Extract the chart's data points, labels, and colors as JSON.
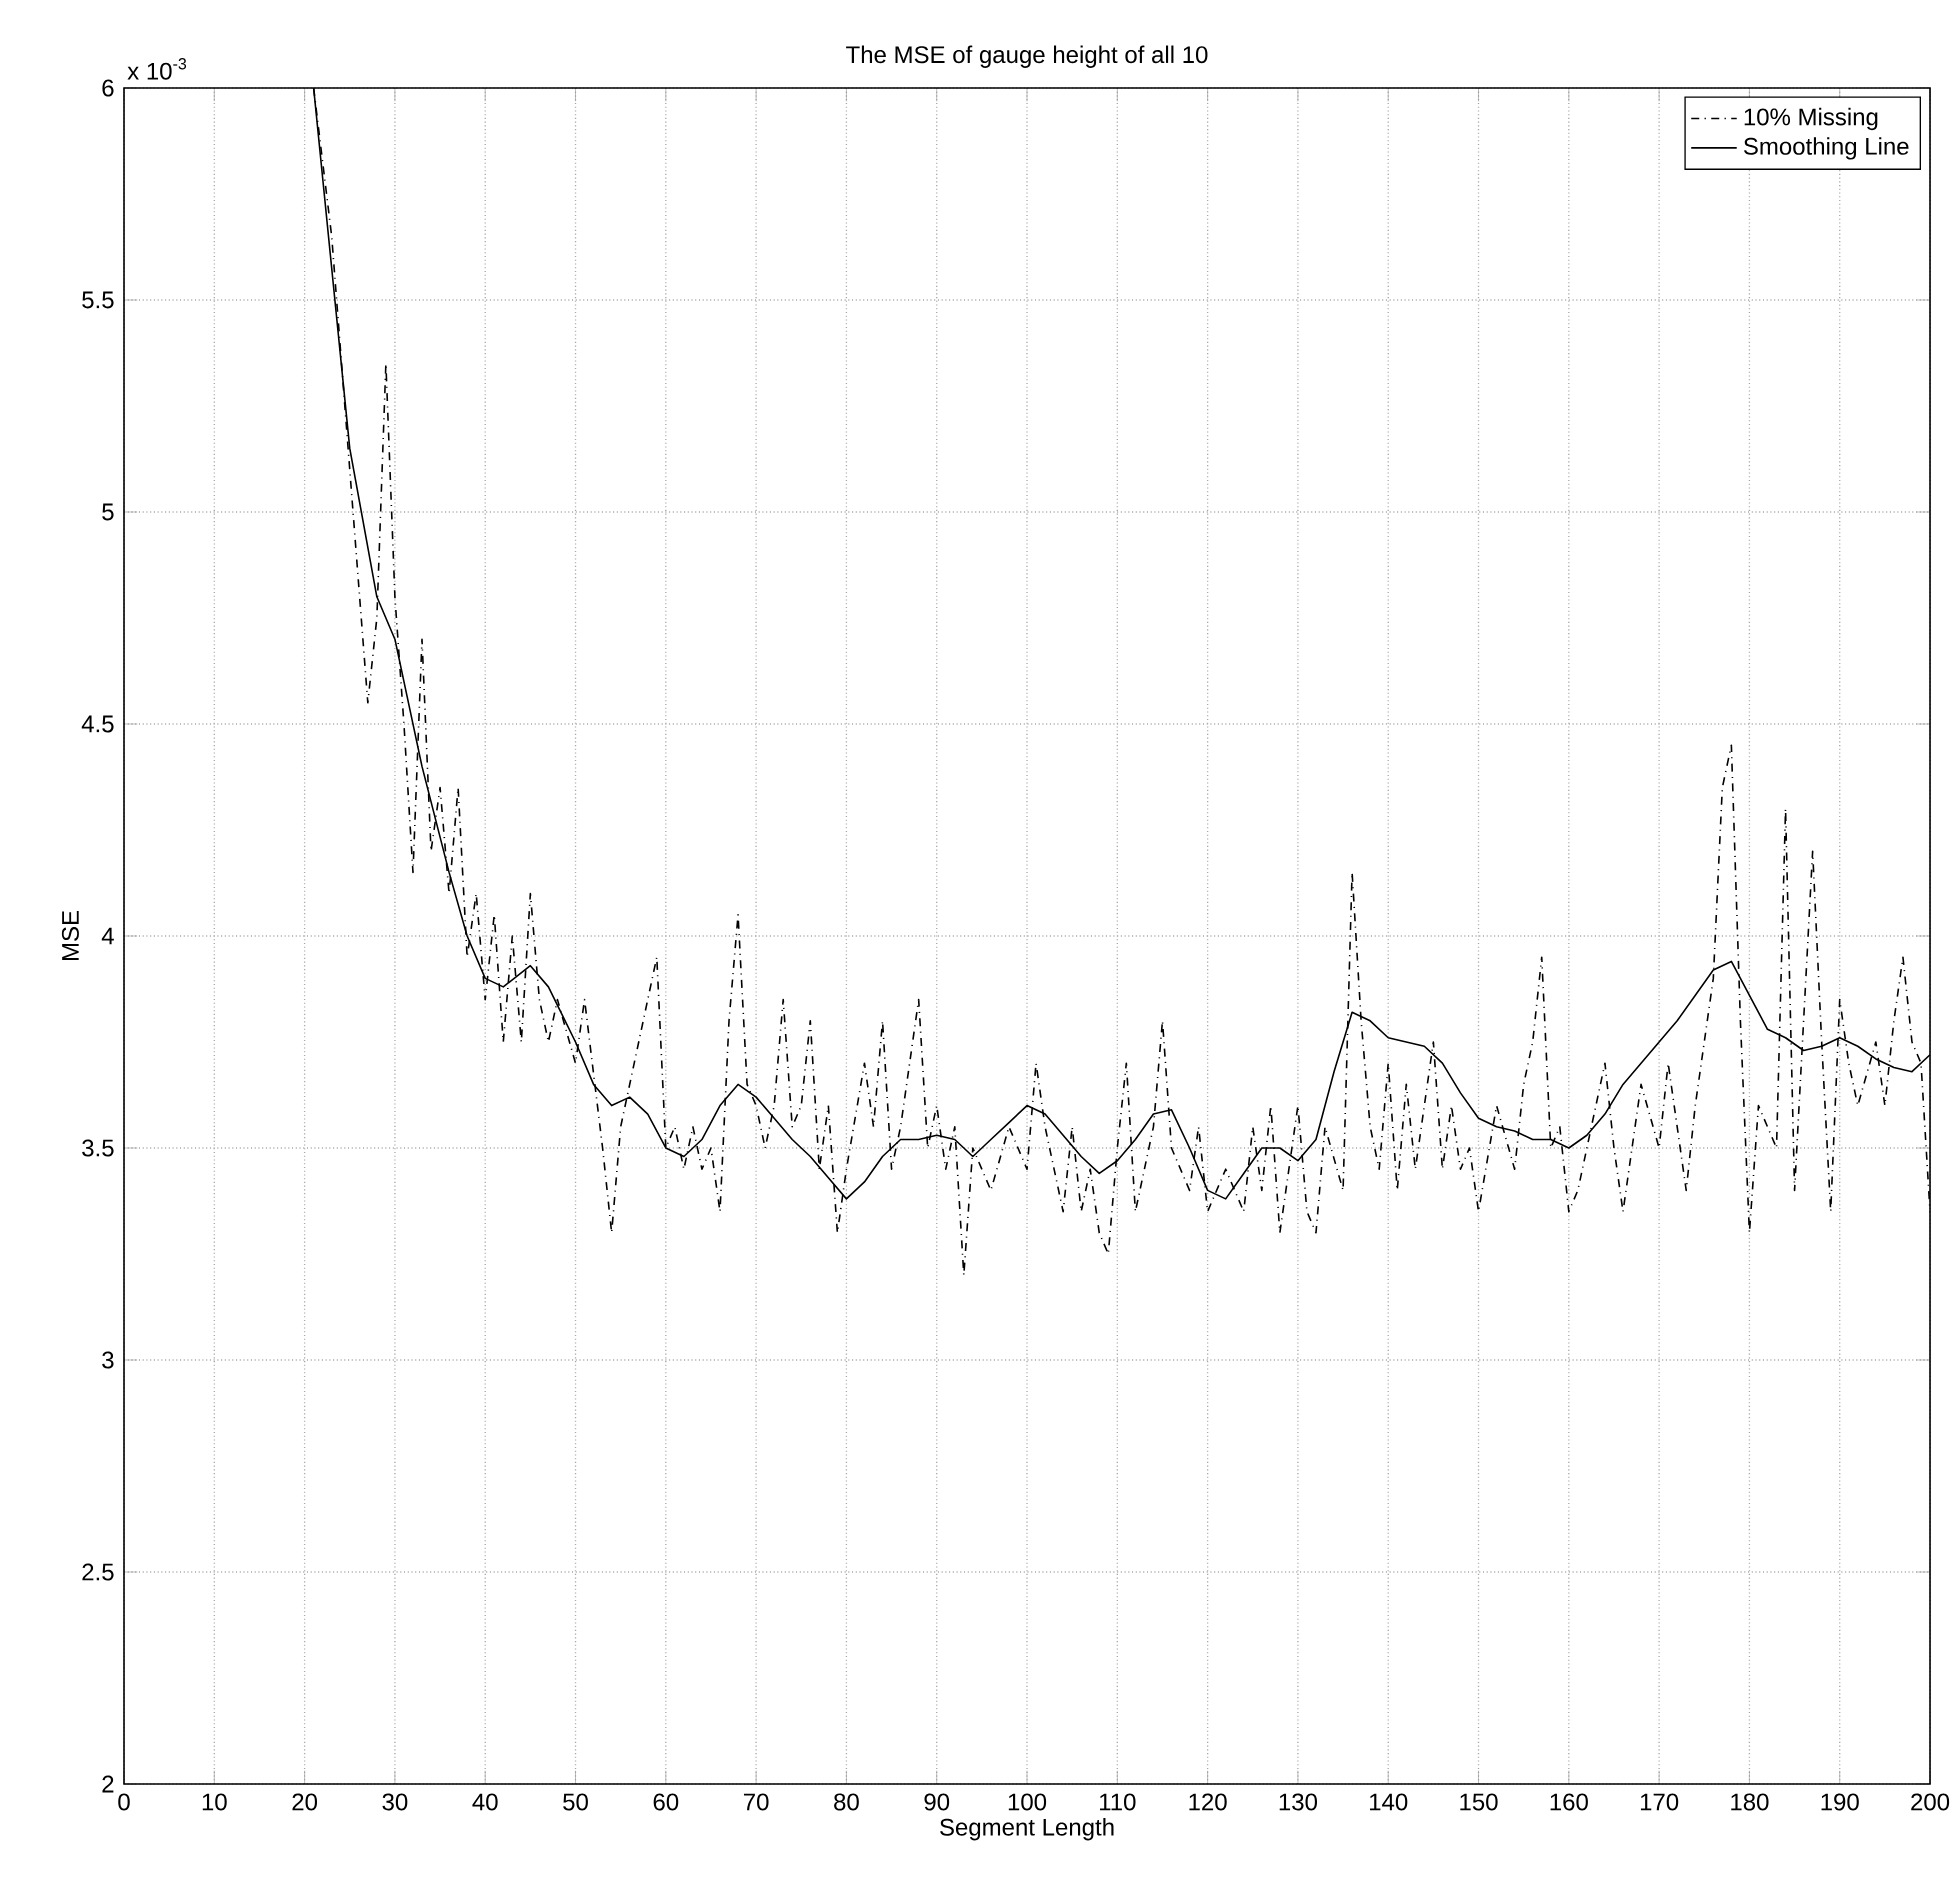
{
  "chart_data": {
    "type": "line",
    "title": "The MSE of gauge height of all 10",
    "xlabel": "Segment Length",
    "ylabel": "MSE",
    "annotations": [
      "x 10$^{-3}$"
    ],
    "xlim": [
      0,
      200
    ],
    "xticks": [
      0,
      10,
      20,
      30,
      40,
      50,
      60,
      70,
      80,
      90,
      100,
      110,
      120,
      130,
      140,
      150,
      160,
      170,
      180,
      190,
      200
    ],
    "ylim": [
      2,
      6
    ],
    "yticks": [
      2,
      2.5,
      3,
      3.5,
      4,
      4.5,
      5,
      5.5,
      6
    ],
    "grid": true,
    "legend": "top right",
    "marker": "none",
    "series": [
      {
        "name": "10% Missing",
        "color": "#000000",
        "line_style": "dashdot",
        "x": [
          21,
          23,
          25,
          27,
          28,
          29,
          30,
          31,
          32,
          33,
          34,
          35,
          36,
          37,
          38,
          39,
          40,
          41,
          42,
          43,
          44,
          45,
          46,
          47,
          48,
          50,
          51,
          53,
          54,
          55,
          57,
          59,
          60,
          61,
          62,
          63,
          64,
          65,
          66,
          67,
          68,
          69,
          70,
          71,
          72,
          73,
          74,
          75,
          76,
          77,
          78,
          79,
          80,
          82,
          83,
          84,
          85,
          86,
          88,
          89,
          90,
          91,
          92,
          93,
          94,
          96,
          98,
          100,
          101,
          102,
          104,
          105,
          106,
          107,
          108,
          109,
          110,
          111,
          112,
          114,
          115,
          116,
          118,
          119,
          120,
          122,
          124,
          125,
          126,
          127,
          128,
          129,
          130,
          131,
          132,
          133,
          135,
          136,
          137,
          138,
          139,
          140,
          141,
          142,
          143,
          144,
          145,
          146,
          147,
          148,
          149,
          150,
          152,
          154,
          155,
          156,
          157,
          158,
          159,
          160,
          161,
          163,
          164,
          165,
          166,
          168,
          170,
          171,
          172,
          173,
          174,
          176,
          177,
          178,
          179,
          180,
          181,
          183,
          184,
          185,
          186,
          187,
          188,
          189,
          190,
          191,
          192,
          194,
          195,
          196,
          197,
          198,
          199,
          200
        ],
        "values": [
          6.0,
          5.65,
          5.1,
          4.55,
          4.75,
          5.35,
          4.8,
          4.5,
          4.15,
          4.7,
          4.2,
          4.35,
          4.1,
          4.35,
          3.95,
          4.1,
          3.85,
          4.05,
          3.75,
          4.0,
          3.75,
          4.1,
          3.85,
          3.75,
          3.85,
          3.7,
          3.85,
          3.5,
          3.3,
          3.55,
          3.75,
          3.95,
          3.5,
          3.55,
          3.45,
          3.55,
          3.45,
          3.5,
          3.35,
          3.8,
          4.05,
          3.65,
          3.6,
          3.5,
          3.6,
          3.85,
          3.55,
          3.6,
          3.8,
          3.45,
          3.6,
          3.3,
          3.45,
          3.7,
          3.55,
          3.8,
          3.45,
          3.55,
          3.85,
          3.5,
          3.6,
          3.45,
          3.55,
          3.2,
          3.5,
          3.4,
          3.55,
          3.45,
          3.7,
          3.55,
          3.35,
          3.55,
          3.35,
          3.45,
          3.3,
          3.25,
          3.5,
          3.7,
          3.35,
          3.55,
          3.8,
          3.5,
          3.4,
          3.55,
          3.35,
          3.45,
          3.35,
          3.55,
          3.4,
          3.6,
          3.3,
          3.45,
          3.6,
          3.35,
          3.3,
          3.55,
          3.4,
          4.15,
          3.8,
          3.55,
          3.45,
          3.7,
          3.4,
          3.65,
          3.45,
          3.6,
          3.75,
          3.45,
          3.6,
          3.45,
          3.5,
          3.35,
          3.6,
          3.45,
          3.65,
          3.75,
          3.95,
          3.5,
          3.55,
          3.35,
          3.4,
          3.6,
          3.7,
          3.5,
          3.35,
          3.65,
          3.5,
          3.7,
          3.55,
          3.4,
          3.6,
          3.9,
          4.35,
          4.45,
          3.8,
          3.3,
          3.6,
          3.5,
          4.3,
          3.4,
          3.8,
          4.2,
          3.75,
          3.35,
          3.85,
          3.7,
          3.6,
          3.75,
          3.6,
          3.8,
          3.95,
          3.75,
          3.7,
          3.35
        ]
      },
      {
        "name": "Smoothing Line",
        "color": "#000000",
        "line_style": "solid",
        "x": [
          21,
          25,
          28,
          30,
          33,
          36,
          38,
          40,
          42,
          45,
          47,
          50,
          52,
          54,
          56,
          58,
          60,
          62,
          64,
          66,
          68,
          70,
          72,
          74,
          76,
          78,
          80,
          82,
          84,
          86,
          88,
          90,
          92,
          94,
          96,
          98,
          100,
          102,
          104,
          106,
          108,
          110,
          112,
          114,
          116,
          118,
          120,
          122,
          124,
          126,
          128,
          130,
          132,
          134,
          136,
          138,
          140,
          142,
          144,
          146,
          148,
          150,
          152,
          154,
          156,
          158,
          160,
          162,
          164,
          166,
          168,
          170,
          172,
          174,
          176,
          178,
          180,
          182,
          184,
          186,
          188,
          190,
          192,
          194,
          196,
          198,
          200
        ],
        "values": [
          6.0,
          5.15,
          4.8,
          4.7,
          4.4,
          4.15,
          4.0,
          3.9,
          3.88,
          3.93,
          3.88,
          3.75,
          3.65,
          3.6,
          3.62,
          3.58,
          3.5,
          3.48,
          3.52,
          3.6,
          3.65,
          3.62,
          3.57,
          3.52,
          3.48,
          3.43,
          3.38,
          3.42,
          3.48,
          3.52,
          3.52,
          3.53,
          3.52,
          3.48,
          3.52,
          3.56,
          3.6,
          3.58,
          3.53,
          3.48,
          3.44,
          3.47,
          3.52,
          3.58,
          3.59,
          3.5,
          3.4,
          3.38,
          3.44,
          3.5,
          3.5,
          3.47,
          3.52,
          3.68,
          3.82,
          3.8,
          3.76,
          3.75,
          3.74,
          3.7,
          3.63,
          3.57,
          3.55,
          3.54,
          3.52,
          3.52,
          3.5,
          3.53,
          3.58,
          3.65,
          3.7,
          3.75,
          3.8,
          3.86,
          3.92,
          3.94,
          3.86,
          3.78,
          3.76,
          3.73,
          3.74,
          3.76,
          3.74,
          3.71,
          3.69,
          3.68,
          3.72
        ]
      }
    ]
  }
}
